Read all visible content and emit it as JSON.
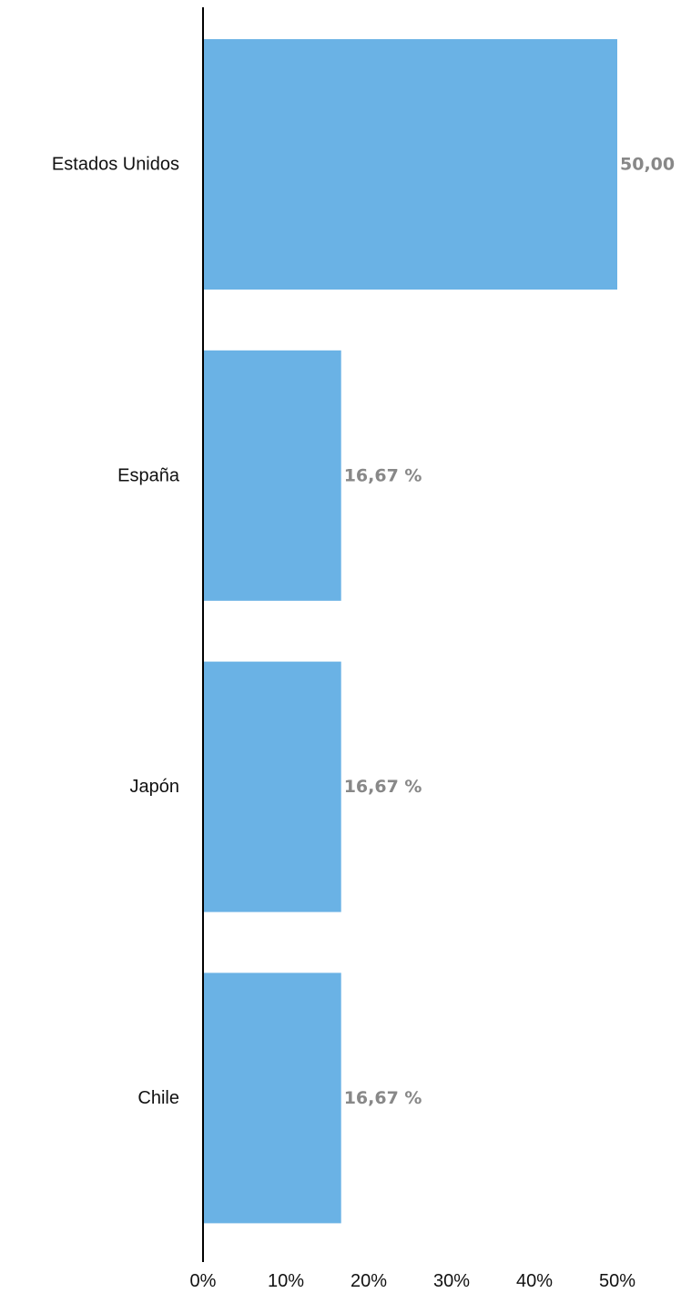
{
  "chart_data": {
    "type": "bar",
    "orientation": "horizontal",
    "categories": [
      "Estados Unidos",
      "España",
      "Japón",
      "Chile"
    ],
    "values": [
      50.0,
      16.67,
      16.67,
      16.67
    ],
    "data_labels": [
      "50,00",
      "16,67 %",
      "16,67 %",
      "16,67 %"
    ],
    "x_ticks": [
      "0%",
      "10%",
      "20%",
      "30%",
      "40%",
      "50%"
    ],
    "xlim": [
      0,
      50
    ],
    "grid": false,
    "legend": "none",
    "title": "",
    "xlabel": "",
    "ylabel": ""
  },
  "colors": {
    "bar": "#6ab2e5",
    "data_label": "#888888",
    "axis": "#000000"
  }
}
